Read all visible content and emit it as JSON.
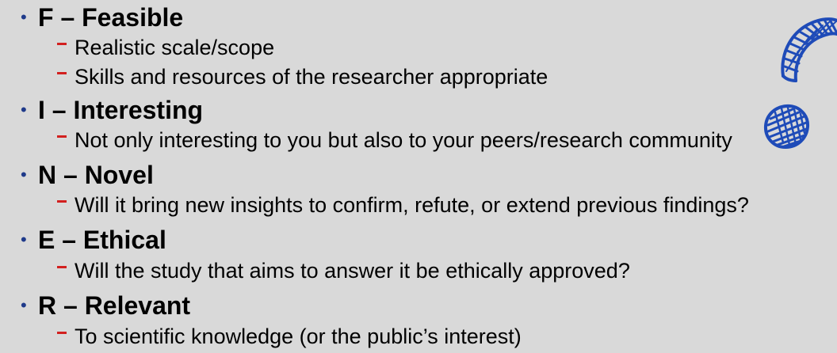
{
  "items": [
    {
      "heading": "F – Feasible",
      "subs": [
        "Realistic scale/scope",
        "Skills and resources of the researcher appropriate"
      ]
    },
    {
      "heading": "I – Interesting",
      "subs": [
        "Not only interesting to you but also to your peers/research community"
      ]
    },
    {
      "heading": "N – Novel",
      "subs": [
        "Will it bring new insights to confirm, refute, or extend previous findings?"
      ]
    },
    {
      "heading": "E – Ethical",
      "subs": [
        "Will the study that aims to answer it be ethically approved?"
      ]
    },
    {
      "heading": "R – Relevant",
      "subs": [
        "To scientific knowledge (or the public’s interest)"
      ]
    }
  ],
  "colors": {
    "background": "#d9d9d9",
    "bullet": "#1f3a8a",
    "dash": "#d2201f",
    "ink": "#1e4bb8"
  },
  "bullet_symbol": "•"
}
